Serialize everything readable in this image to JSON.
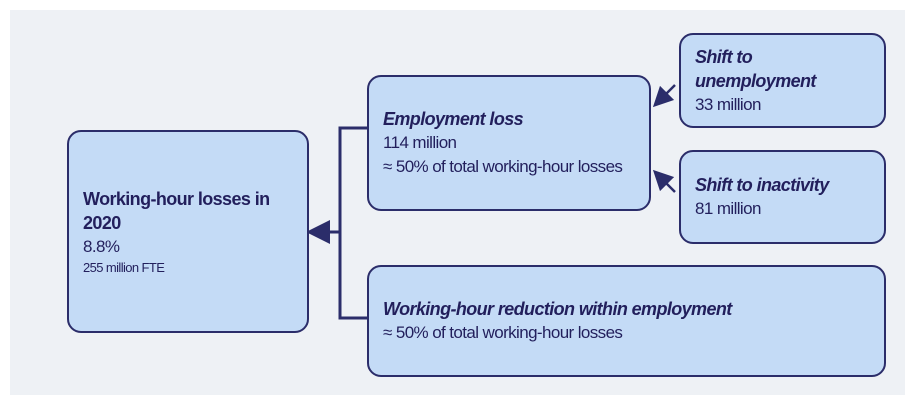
{
  "nodes": [
    {
      "title": "Working-hour losses in 2020",
      "lines": [
        "8.8%",
        "255 million FTE"
      ]
    },
    {
      "title": "Employment loss",
      "lines": [
        "114 million",
        "≈ 50% of total working-hour losses"
      ]
    },
    {
      "title": "Shift to unemployment",
      "lines": [
        "33 million"
      ]
    },
    {
      "title": "Shift to inactivity",
      "lines": [
        "81 million"
      ]
    },
    {
      "title": "Working-hour reduction within employment",
      "lines": [
        "≈ 50% of total working-hour losses"
      ]
    }
  ]
}
